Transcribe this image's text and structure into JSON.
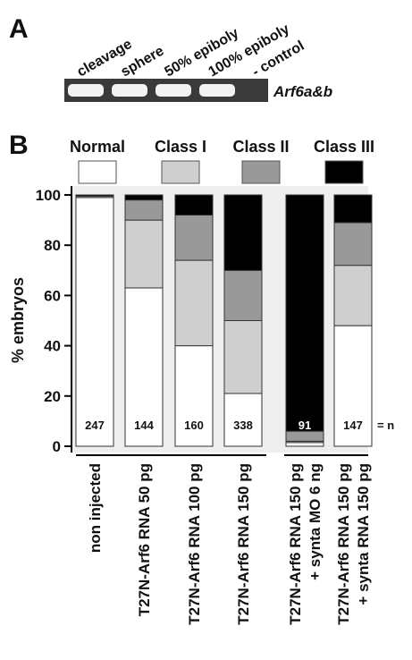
{
  "panel_a": {
    "label": "A",
    "lanes": [
      "cleavage",
      "sphere",
      "50% epiboly",
      "100% epiboly",
      "- control"
    ],
    "gene": "Arf6a&b"
  },
  "panel_b": {
    "label": "B"
  },
  "chart_data": {
    "type": "stacked_bar",
    "ylabel": "% embryos",
    "categories": [
      [
        "non injected"
      ],
      [
        "T27N-Arf6  RNA 50 pg"
      ],
      [
        "T27N-Arf6 RNA 100 pg"
      ],
      [
        "T27N-Arf6 RNA 150 pg"
      ],
      [
        "T27N-Arf6 RNA 150 pg",
        "+ synta MO 6 ng"
      ],
      [
        "T27N-Arf6 RNA 150 pg",
        "+ synta RNA 150 pg"
      ]
    ],
    "series": [
      {
        "name": "Normal",
        "color": "#ffffff",
        "values": [
          99,
          63,
          40,
          21,
          1.5,
          48
        ]
      },
      {
        "name": "Class I",
        "color": "#cfcfcf",
        "values": [
          0.5,
          27,
          34,
          29,
          0.5,
          24
        ]
      },
      {
        "name": "Class II",
        "color": "#999999",
        "values": [
          0,
          8,
          18,
          20,
          4,
          17
        ]
      },
      {
        "name": "Class III",
        "color": "#000000",
        "values": [
          0.5,
          2,
          8,
          30,
          94,
          11
        ]
      }
    ],
    "n": [
      247,
      144,
      160,
      338,
      91,
      147
    ],
    "n_label": "= n",
    "ylim": [
      0,
      100
    ],
    "yticks": [
      0,
      20,
      40,
      60,
      80,
      100
    ]
  }
}
